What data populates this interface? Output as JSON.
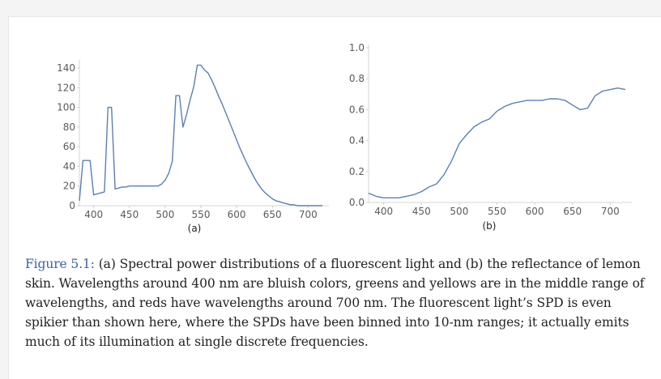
{
  "figure": {
    "label": "Figure 5.1:",
    "caption_text": " (a) Spectral power distributions of a fluorescent light and (b) the reflectance of lemon skin. Wavelengths around 400 nm are bluish colors, greens and yellows are in the middle range of wavelengths, and reds have wavelengths around 700 nm. The fluorescent light’s SPD is even spikier than shown here, where the SPDs have been binned into 10-nm ranges; it actually emits much of its illumination at single discrete frequencies."
  },
  "chart_data": [
    {
      "type": "line",
      "sublabel": "(a)",
      "line_color": "#5b7fb5",
      "xlim": [
        380,
        720
      ],
      "ylim": [
        0,
        145
      ],
      "x_ticks": [
        "400",
        "450",
        "500",
        "550",
        "600",
        "650",
        "700"
      ],
      "y_ticks": [
        "0",
        "20",
        "40",
        "60",
        "80",
        "100",
        "120",
        "140"
      ],
      "series": [
        {
          "x": [
            380,
            385,
            390,
            395,
            400,
            405,
            410,
            415,
            420,
            425,
            430,
            435,
            440,
            445,
            450,
            455,
            460,
            465,
            470,
            475,
            480,
            485,
            490,
            495,
            500,
            505,
            510,
            515,
            520,
            525,
            530,
            535,
            540,
            545,
            550,
            555,
            560,
            565,
            570,
            575,
            580,
            585,
            590,
            595,
            600,
            605,
            610,
            615,
            620,
            625,
            630,
            635,
            640,
            645,
            650,
            655,
            660,
            665,
            670,
            675,
            680,
            685,
            690,
            695,
            700,
            705,
            710,
            715,
            720
          ],
          "y": [
            5,
            46,
            46,
            46,
            11,
            12,
            13,
            14,
            100,
            100,
            17,
            18,
            19,
            19,
            20,
            20,
            20,
            20,
            20,
            20,
            20,
            20,
            20,
            22,
            26,
            33,
            45,
            112,
            112,
            80,
            93,
            108,
            121,
            143,
            143,
            138,
            135,
            128,
            120,
            111,
            103,
            94,
            85,
            76,
            67,
            58,
            50,
            42,
            35,
            28,
            22,
            17,
            13,
            10,
            7,
            5,
            4,
            3,
            2,
            1,
            1,
            0,
            0,
            0,
            0,
            0,
            0,
            0,
            0
          ]
        }
      ]
    },
    {
      "type": "line",
      "sublabel": "(b)",
      "line_color": "#5b7fb5",
      "xlim": [
        380,
        720
      ],
      "ylim": [
        0,
        1.0
      ],
      "x_ticks": [
        "400",
        "450",
        "500",
        "550",
        "600",
        "650",
        "700"
      ],
      "y_ticks": [
        "0.0",
        "0.2",
        "0.4",
        "0.6",
        "0.8",
        "1.0"
      ],
      "series": [
        {
          "x": [
            380,
            390,
            400,
            410,
            420,
            430,
            440,
            450,
            460,
            470,
            480,
            490,
            500,
            510,
            520,
            530,
            540,
            550,
            560,
            570,
            580,
            590,
            600,
            610,
            620,
            630,
            640,
            650,
            660,
            670,
            680,
            690,
            700,
            710,
            720
          ],
          "y": [
            0.06,
            0.04,
            0.03,
            0.03,
            0.03,
            0.04,
            0.05,
            0.07,
            0.1,
            0.12,
            0.18,
            0.27,
            0.38,
            0.44,
            0.49,
            0.52,
            0.54,
            0.59,
            0.62,
            0.64,
            0.65,
            0.66,
            0.66,
            0.66,
            0.67,
            0.67,
            0.66,
            0.63,
            0.6,
            0.61,
            0.69,
            0.72,
            0.73,
            0.74,
            0.73
          ]
        }
      ]
    }
  ]
}
